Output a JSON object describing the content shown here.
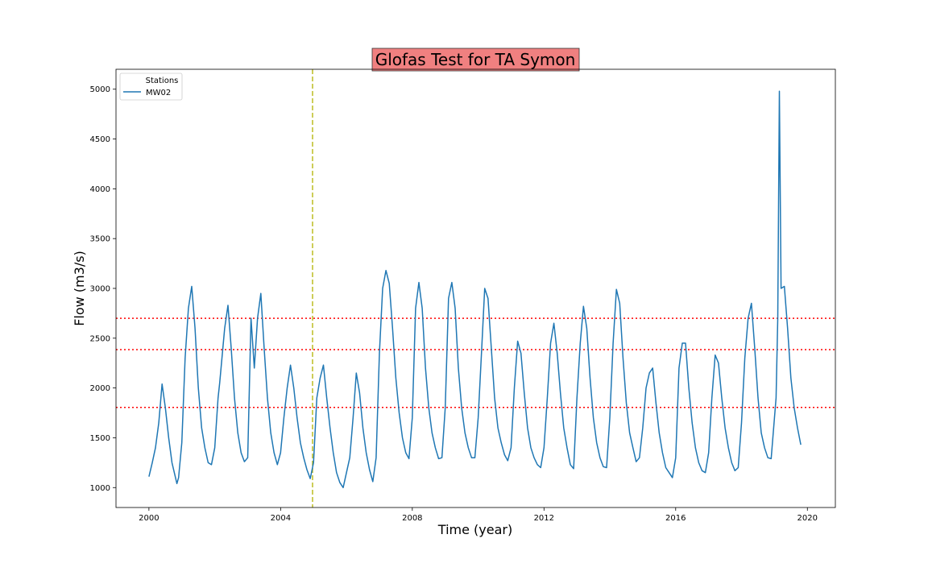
{
  "chart_data": {
    "type": "line",
    "title": "Glofas Test for TA Symon",
    "xlabel": "Time (year)",
    "ylabel": "Flow (m3/s)",
    "xlim": [
      1999.0,
      2020.85
    ],
    "ylim": [
      800,
      5200
    ],
    "x_ticks": [
      2000,
      2004,
      2008,
      2012,
      2016,
      2020
    ],
    "y_ticks": [
      1000,
      1500,
      2000,
      2500,
      3000,
      3500,
      4000,
      4500,
      5000
    ],
    "legend": {
      "title": "Stations",
      "placement": "upper left"
    },
    "series": [
      {
        "name": "MW02",
        "color": "#1f77b4",
        "x": [
          2000.0,
          2000.1,
          2000.2,
          2000.3,
          2000.4,
          2000.5,
          2000.6,
          2000.7,
          2000.85,
          2000.9,
          2001.0,
          2001.1,
          2001.2,
          2001.3,
          2001.4,
          2001.5,
          2001.6,
          2001.7,
          2001.8,
          2001.9,
          2002.0,
          2002.1,
          2002.15,
          2002.3,
          2002.4,
          2002.5,
          2002.6,
          2002.7,
          2002.8,
          2002.9,
          2003.0,
          2003.1,
          2003.2,
          2003.3,
          2003.4,
          2003.5,
          2003.6,
          2003.7,
          2003.8,
          2003.9,
          2004.0,
          2004.1,
          2004.2,
          2004.3,
          2004.4,
          2004.5,
          2004.6,
          2004.7,
          2004.8,
          2004.9,
          2005.0,
          2005.1,
          2005.2,
          2005.3,
          2005.4,
          2005.5,
          2005.6,
          2005.7,
          2005.8,
          2005.9,
          2006.0,
          2006.1,
          2006.2,
          2006.3,
          2006.4,
          2006.5,
          2006.6,
          2006.7,
          2006.8,
          2006.9,
          2007.0,
          2007.1,
          2007.2,
          2007.3,
          2007.4,
          2007.5,
          2007.6,
          2007.7,
          2007.8,
          2007.9,
          2008.0,
          2008.1,
          2008.2,
          2008.3,
          2008.4,
          2008.5,
          2008.6,
          2008.7,
          2008.8,
          2008.9,
          2009.0,
          2009.1,
          2009.2,
          2009.3,
          2009.4,
          2009.5,
          2009.6,
          2009.7,
          2009.8,
          2009.9,
          2010.0,
          2010.1,
          2010.2,
          2010.3,
          2010.4,
          2010.5,
          2010.6,
          2010.7,
          2010.8,
          2010.9,
          2011.0,
          2011.1,
          2011.2,
          2011.3,
          2011.4,
          2011.5,
          2011.6,
          2011.7,
          2011.8,
          2011.9,
          2012.0,
          2012.1,
          2012.2,
          2012.3,
          2012.4,
          2012.5,
          2012.6,
          2012.7,
          2012.8,
          2012.9,
          2013.0,
          2013.1,
          2013.2,
          2013.3,
          2013.4,
          2013.5,
          2013.6,
          2013.7,
          2013.8,
          2013.9,
          2014.0,
          2014.1,
          2014.2,
          2014.3,
          2014.4,
          2014.5,
          2014.6,
          2014.7,
          2014.8,
          2014.9,
          2015.0,
          2015.1,
          2015.2,
          2015.3,
          2015.4,
          2015.5,
          2015.6,
          2015.7,
          2015.8,
          2015.9,
          2016.0,
          2016.1,
          2016.2,
          2016.3,
          2016.4,
          2016.5,
          2016.6,
          2016.7,
          2016.8,
          2016.9,
          2017.0,
          2017.1,
          2017.2,
          2017.3,
          2017.4,
          2017.5,
          2017.6,
          2017.7,
          2017.8,
          2017.9,
          2018.0,
          2018.1,
          2018.2,
          2018.3,
          2018.4,
          2018.5,
          2018.6,
          2018.7,
          2018.8,
          2018.9,
          2019.0,
          2019.05,
          2019.1,
          2019.15,
          2019.2,
          2019.3,
          2019.4,
          2019.5,
          2019.6,
          2019.7,
          2019.8
        ],
        "y": [
          1110,
          1250,
          1400,
          1650,
          2040,
          1800,
          1500,
          1250,
          1040,
          1100,
          1450,
          2300,
          2800,
          3020,
          2600,
          2000,
          1600,
          1400,
          1250,
          1230,
          1400,
          1900,
          2050,
          2600,
          2830,
          2400,
          1900,
          1550,
          1350,
          1260,
          1300,
          2700,
          2200,
          2700,
          2950,
          2400,
          1900,
          1550,
          1350,
          1230,
          1350,
          1700,
          2000,
          2230,
          2000,
          1700,
          1450,
          1300,
          1180,
          1090,
          1250,
          1900,
          2100,
          2230,
          1900,
          1600,
          1350,
          1150,
          1050,
          1000,
          1150,
          1300,
          1700,
          2150,
          1950,
          1600,
          1350,
          1180,
          1060,
          1300,
          2350,
          3000,
          3180,
          3050,
          2600,
          2100,
          1750,
          1500,
          1350,
          1290,
          1700,
          2800,
          3060,
          2800,
          2200,
          1800,
          1550,
          1400,
          1290,
          1300,
          1800,
          2900,
          3060,
          2800,
          2200,
          1800,
          1550,
          1400,
          1300,
          1300,
          1700,
          2350,
          3000,
          2900,
          2400,
          1900,
          1600,
          1450,
          1330,
          1270,
          1400,
          2000,
          2470,
          2350,
          1950,
          1600,
          1400,
          1300,
          1230,
          1200,
          1400,
          1900,
          2450,
          2650,
          2350,
          1950,
          1600,
          1400,
          1230,
          1190,
          1900,
          2450,
          2820,
          2600,
          2100,
          1700,
          1450,
          1300,
          1210,
          1200,
          1700,
          2450,
          2990,
          2850,
          2300,
          1850,
          1550,
          1400,
          1260,
          1300,
          1600,
          2000,
          2150,
          2200,
          1850,
          1550,
          1350,
          1200,
          1150,
          1100,
          1300,
          2200,
          2450,
          2450,
          2000,
          1650,
          1400,
          1250,
          1170,
          1150,
          1350,
          1900,
          2330,
          2250,
          1900,
          1600,
          1400,
          1250,
          1170,
          1200,
          1650,
          2300,
          2700,
          2850,
          2400,
          1900,
          1550,
          1400,
          1300,
          1290,
          1700,
          1900,
          2700,
          4980,
          3000,
          3020,
          2600,
          2100,
          1800,
          1600,
          1430
        ]
      }
    ],
    "reference_lines": [
      {
        "orientation": "horizontal",
        "value": 2700,
        "style": "dotted",
        "color": "#ff0000"
      },
      {
        "orientation": "horizontal",
        "value": 2385,
        "style": "dotted",
        "color": "#ff0000"
      },
      {
        "orientation": "horizontal",
        "value": 1805,
        "style": "dotted",
        "color": "#ff0000"
      },
      {
        "orientation": "vertical",
        "value": 2004.97,
        "style": "dashed",
        "color": "#bcbd22"
      }
    ],
    "title_box_color": "#f08080",
    "grid": false
  }
}
